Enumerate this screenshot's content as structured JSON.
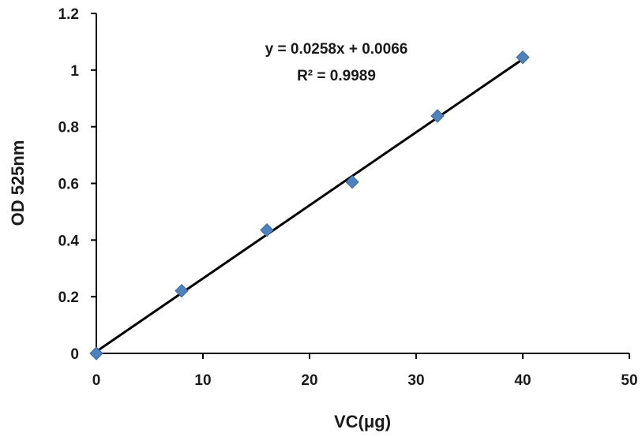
{
  "chart_data": {
    "type": "scatter",
    "xlabel": "VC(μg)",
    "ylabel": "OD 525nm",
    "xlim": [
      0,
      50
    ],
    "ylim": [
      0,
      1.2
    ],
    "x_ticks": [
      "0",
      "10",
      "20",
      "30",
      "40",
      "50"
    ],
    "y_ticks": [
      "0",
      "0.2",
      "0.4",
      "0.6",
      "0.8",
      "1",
      "1.2"
    ],
    "grid": false,
    "legend": "none",
    "series": [
      {
        "marker": "diamond",
        "color": "#4f81bd",
        "points": [
          {
            "x": 0,
            "y": 0
          },
          {
            "x": 8,
            "y": 0.221
          },
          {
            "x": 16,
            "y": 0.435
          },
          {
            "x": 24,
            "y": 0.605
          },
          {
            "x": 32,
            "y": 0.838
          },
          {
            "x": 40,
            "y": 1.045
          }
        ]
      }
    ],
    "trendline": {
      "type": "linear",
      "slope": 0.0258,
      "intercept": 0.0066,
      "x_range": [
        0,
        40
      ],
      "color": "#000000",
      "equation": "y = 0.0258x + 0.0066",
      "r_squared": "R² = 0.9989"
    },
    "axis_color": "#000000"
  }
}
